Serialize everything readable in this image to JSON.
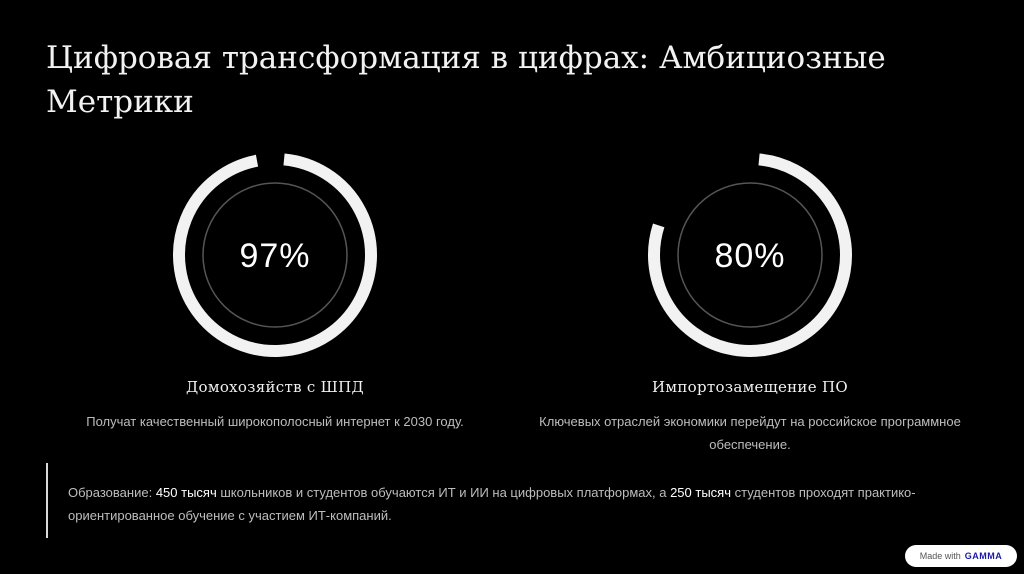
{
  "title": "Цифровая трансформация в цифрах: Амбициозные Метрики",
  "metrics": [
    {
      "value_label": "97%",
      "percent": 97,
      "label": "Домохозяйств с ШПД",
      "description": "Получат качественный широкополосный интернет к 2030 году."
    },
    {
      "value_label": "80%",
      "percent": 80,
      "label": "Импортозамещение ПО",
      "description": "Ключевых отраслей экономики перейдут на российское программное обеспечение."
    }
  ],
  "note": {
    "part1": "Образование: ",
    "highlight1": "450 тысяч",
    "part2": " школьников и студентов обучаются ИТ и ИИ на цифровых платформах, а ",
    "highlight2": "250 тысяч",
    "part3": " студентов проходят практико-ориентированное обучение с участием ИТ-компаний."
  },
  "badge": {
    "prefix": "Made with",
    "brand": "GAMMA"
  },
  "colors": {
    "background": "#000000",
    "ring_fill": "#f2f2f2",
    "ring_inner": "#555555"
  }
}
